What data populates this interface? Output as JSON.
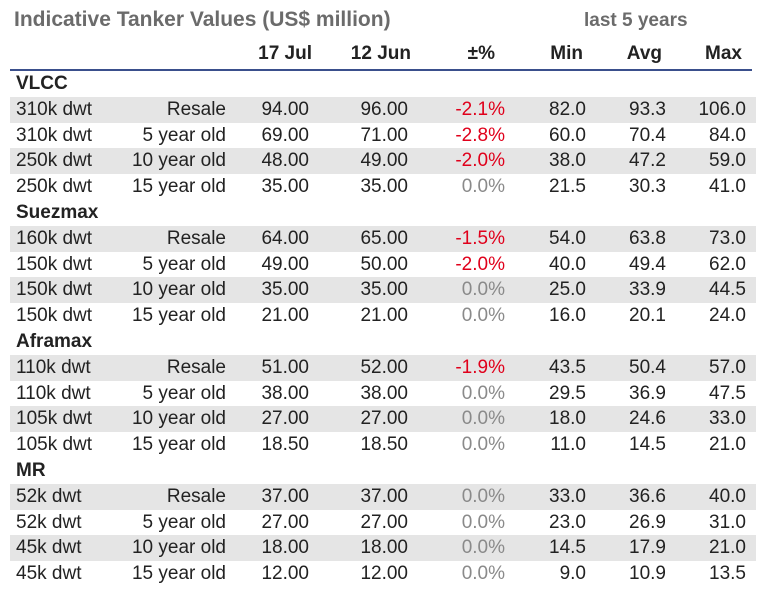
{
  "title": "Indicative Tanker Values (US$ million)",
  "subheader": "last 5 years",
  "columns": [
    "17 Jul",
    "12 Jun",
    "±%",
    "Min",
    "Avg",
    "Max"
  ],
  "sections": [
    {
      "name": "VLCC",
      "rows": [
        {
          "size": "310k dwt",
          "age": "Resale",
          "jul": "94.00",
          "jun": "96.00",
          "chg": "-2.1%",
          "min": "82.0",
          "avg": "93.3",
          "max": "106.0"
        },
        {
          "size": "310k dwt",
          "age": "5 year old",
          "jul": "69.00",
          "jun": "71.00",
          "chg": "-2.8%",
          "min": "60.0",
          "avg": "70.4",
          "max": "84.0"
        },
        {
          "size": "250k dwt",
          "age": "10 year old",
          "jul": "48.00",
          "jun": "49.00",
          "chg": "-2.0%",
          "min": "38.0",
          "avg": "47.2",
          "max": "59.0"
        },
        {
          "size": "250k dwt",
          "age": "15 year old",
          "jul": "35.00",
          "jun": "35.00",
          "chg": "0.0%",
          "min": "21.5",
          "avg": "30.3",
          "max": "41.0"
        }
      ]
    },
    {
      "name": "Suezmax",
      "rows": [
        {
          "size": "160k dwt",
          "age": "Resale",
          "jul": "64.00",
          "jun": "65.00",
          "chg": "-1.5%",
          "min": "54.0",
          "avg": "63.8",
          "max": "73.0"
        },
        {
          "size": "150k dwt",
          "age": "5 year old",
          "jul": "49.00",
          "jun": "50.00",
          "chg": "-2.0%",
          "min": "40.0",
          "avg": "49.4",
          "max": "62.0"
        },
        {
          "size": "150k dwt",
          "age": "10 year old",
          "jul": "35.00",
          "jun": "35.00",
          "chg": "0.0%",
          "min": "25.0",
          "avg": "33.9",
          "max": "44.5"
        },
        {
          "size": "150k dwt",
          "age": "15 year old",
          "jul": "21.00",
          "jun": "21.00",
          "chg": "0.0%",
          "min": "16.0",
          "avg": "20.1",
          "max": "24.0"
        }
      ]
    },
    {
      "name": "Aframax",
      "rows": [
        {
          "size": "110k dwt",
          "age": "Resale",
          "jul": "51.00",
          "jun": "52.00",
          "chg": "-1.9%",
          "min": "43.5",
          "avg": "50.4",
          "max": "57.0"
        },
        {
          "size": "110k dwt",
          "age": "5 year old",
          "jul": "38.00",
          "jun": "38.00",
          "chg": "0.0%",
          "min": "29.5",
          "avg": "36.9",
          "max": "47.5"
        },
        {
          "size": "105k dwt",
          "age": "10 year old",
          "jul": "27.00",
          "jun": "27.00",
          "chg": "0.0%",
          "min": "18.0",
          "avg": "24.6",
          "max": "33.0"
        },
        {
          "size": "105k dwt",
          "age": "15 year old",
          "jul": "18.50",
          "jun": "18.50",
          "chg": "0.0%",
          "min": "11.0",
          "avg": "14.5",
          "max": "21.0"
        }
      ]
    },
    {
      "name": "MR",
      "rows": [
        {
          "size": "52k dwt",
          "age": "Resale",
          "jul": "37.00",
          "jun": "37.00",
          "chg": "0.0%",
          "min": "33.0",
          "avg": "36.6",
          "max": "40.0"
        },
        {
          "size": "52k dwt",
          "age": "5 year old",
          "jul": "27.00",
          "jun": "27.00",
          "chg": "0.0%",
          "min": "23.0",
          "avg": "26.9",
          "max": "31.0"
        },
        {
          "size": "45k dwt",
          "age": "10 year old",
          "jul": "18.00",
          "jun": "18.00",
          "chg": "0.0%",
          "min": "14.5",
          "avg": "17.9",
          "max": "21.0"
        },
        {
          "size": "45k dwt",
          "age": "15 year old",
          "jul": "12.00",
          "jun": "12.00",
          "chg": "0.0%",
          "min": "9.0",
          "avg": "10.9",
          "max": "13.5"
        }
      ]
    }
  ],
  "colors": {
    "negative": "#e0001b",
    "zero": "#8a8a8a",
    "shade": "#e5e5e5",
    "rule": "#3a4f8c",
    "title": "#6b6b6b"
  }
}
